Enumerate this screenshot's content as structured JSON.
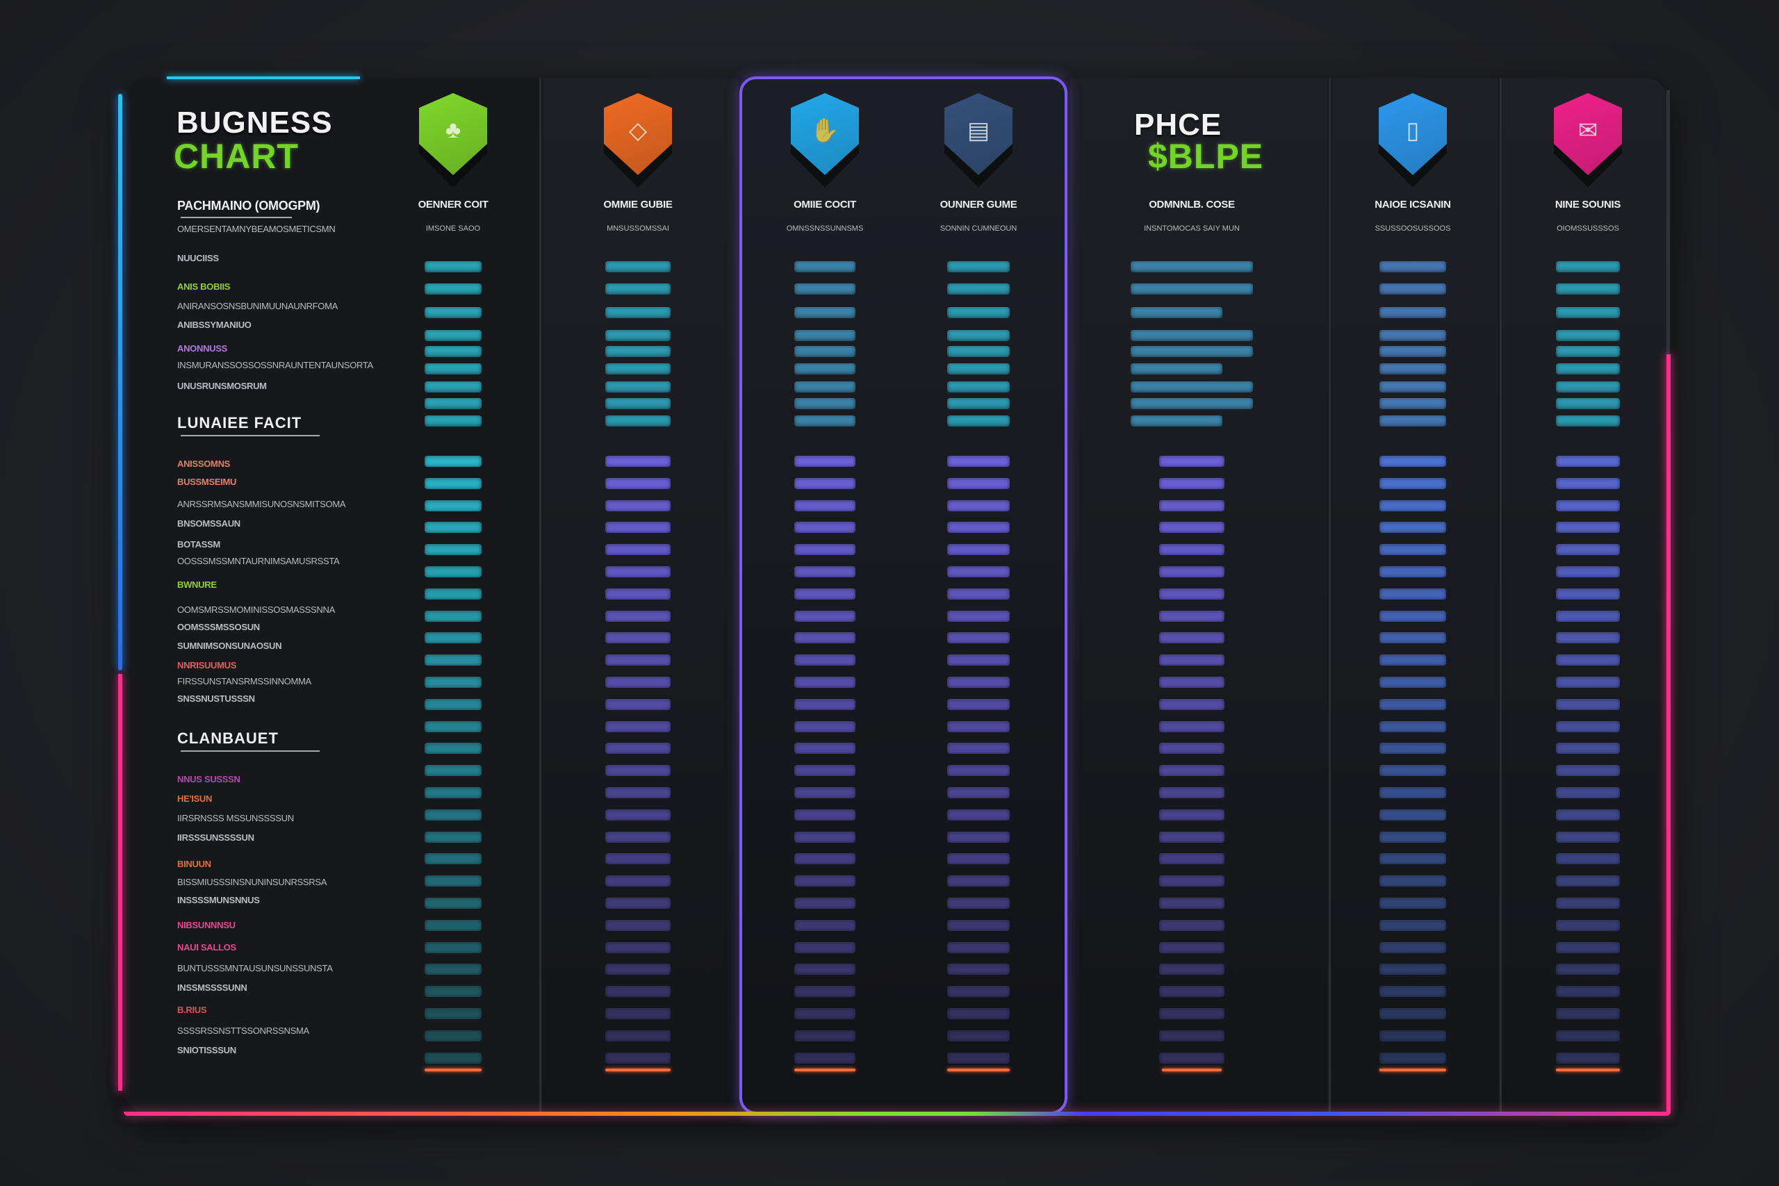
{
  "header": {
    "title_line1": "BUGNESS",
    "title_line2": "CHART",
    "price_line1": "PHCE",
    "price_line2": "$BLPE"
  },
  "colors": {
    "accent_cyan": "#2ac6f2",
    "accent_pink": "#ff2d8a",
    "accent_green": "#74d42a",
    "accent_purple": "#7a5cf0",
    "bar_cyan": "#2bb3c6",
    "bar_purple": "#6b60d6",
    "bar_blue": "#4c72d2",
    "bar_end": "#ff6a3a"
  },
  "sidebar": {
    "labels": [
      {
        "text": "PACHMAINO (OMOGPM)",
        "color": "#f0f0f0",
        "kind": "head-small"
      },
      {
        "text": "OMERSENTAMNYBEAMOSMETICSMN",
        "color": "#b9bcc2",
        "kind": "line"
      },
      {
        "text": "NUUCIISS",
        "color": "#b9bcc2",
        "kind": "item"
      },
      {
        "text": "ANIS BOBIIS",
        "color": "#8ed13a",
        "kind": "item"
      },
      {
        "text": "ANIRANSOSNSBUNIMUUNAUNRFOMA",
        "color": "#b9bcc2",
        "kind": "line"
      },
      {
        "text": "ANIBSSYMANIUO",
        "color": "#b9bcc2",
        "kind": "item"
      },
      {
        "text": "ANONNUSS",
        "color": "#b07ad8",
        "kind": "item"
      },
      {
        "text": "INSMURANSSOSSOSSNRAUNTENTAUNSORTA",
        "color": "#b9bcc2",
        "kind": "line"
      },
      {
        "text": "UNUSRUNSMOSRUM",
        "color": "#b9bcc2",
        "kind": "item"
      },
      {
        "text": "LUNAIEE FACIT",
        "color": "#f0f0f0",
        "kind": "head"
      },
      {
        "text": "ANISSOMNS",
        "color": "#e0806a",
        "kind": "item"
      },
      {
        "text": "BUSSMSEIMU",
        "color": "#e0806a",
        "kind": "item"
      },
      {
        "text": "ANRSSRMSANSMMISUNOSNSMITSOMA",
        "color": "#b9bcc2",
        "kind": "line"
      },
      {
        "text": "BNSOMSSAUN",
        "color": "#b9bcc2",
        "kind": "item"
      },
      {
        "text": "BOTASSM",
        "color": "#b9bcc2",
        "kind": "item"
      },
      {
        "text": "OOSSSMSSMNTAURNIMSAMUSRSSTA",
        "color": "#b9bcc2",
        "kind": "line"
      },
      {
        "text": "BWNURE",
        "color": "#8ed13a",
        "kind": "item"
      },
      {
        "text": "OOMSMRSSMOMINISSOSMASSSNNA",
        "color": "#b9bcc2",
        "kind": "line"
      },
      {
        "text": "OOMSSSMSSOSUN",
        "color": "#b9bcc2",
        "kind": "item"
      },
      {
        "text": "SUMNIMSONSUNAOSUN",
        "color": "#b9bcc2",
        "kind": "item"
      },
      {
        "text": "NNRISUUMUS",
        "color": "#e0605a",
        "kind": "item"
      },
      {
        "text": "FIRSSUNSTANSRMSSINNOMMA",
        "color": "#b9bcc2",
        "kind": "line"
      },
      {
        "text": "SNSSNUSTUSSSN",
        "color": "#b9bcc2",
        "kind": "item"
      },
      {
        "text": "CLANBAUET",
        "color": "#f0f0f0",
        "kind": "head"
      },
      {
        "text": "NNUS SUSSSN",
        "color": "#b04ab0",
        "kind": "item"
      },
      {
        "text": "HE'ISUN",
        "color": "#e0703a",
        "kind": "item"
      },
      {
        "text": "IIRSRNSSS MSSUNSSSSUN",
        "color": "#b9bcc2",
        "kind": "line"
      },
      {
        "text": "IIRSSSUNSSSSUN",
        "color": "#b9bcc2",
        "kind": "item"
      },
      {
        "text": "BINUUN",
        "color": "#e0703a",
        "kind": "item"
      },
      {
        "text": "BISSMIUSSSINSNUNINSUNRSSRSA",
        "color": "#b9bcc2",
        "kind": "line"
      },
      {
        "text": "INSSSSMUNSNNUS",
        "color": "#b9bcc2",
        "kind": "item"
      },
      {
        "text": "NIBSUNNNSU",
        "color": "#e04a90",
        "kind": "item"
      },
      {
        "text": "NAUI SALLOS",
        "color": "#e04a90",
        "kind": "item"
      },
      {
        "text": "BUNTUSSSMNTAUSUNSUNSSUNSTA",
        "color": "#b9bcc2",
        "kind": "line"
      },
      {
        "text": "INSSMSSSSUNN",
        "color": "#b9bcc2",
        "kind": "item"
      },
      {
        "text": "B.RIUS",
        "color": "#e0505a",
        "kind": "item"
      },
      {
        "text": "SSSSRSSNSTTSSONRSSNSMA",
        "color": "#b9bcc2",
        "kind": "line"
      },
      {
        "text": "SNIOTISSSUN",
        "color": "#b9bcc2",
        "kind": "item"
      }
    ]
  },
  "plans": [
    {
      "name": "OENNER COIT",
      "subtitle": "IMSONE SAOO",
      "icon": "shield-leaf-icon",
      "color": "#7fd82a",
      "bar_top": "#2bb3c6",
      "bar_bottom": "#2bb3c6"
    },
    {
      "name": "OMMIE GUBIE",
      "subtitle": "MNSUSSOMSSAI",
      "icon": "diamond-icon",
      "color": "#f06a22",
      "bar_top": "#2ea9c2",
      "bar_bottom": "#6b60d6"
    },
    {
      "name": "OMIIE COCIT",
      "subtitle": "OMNSSNSSUNNSMS",
      "icon": "hand-icon",
      "color": "#22a8ea",
      "bar_top": "#3f8fb8",
      "bar_bottom": "#6b60d6"
    },
    {
      "name": "OUNNER GUME",
      "subtitle": "SONNIN CUMNEOUN",
      "icon": "document-icon",
      "color": "#34507a",
      "bar_top": "#2ea9c2",
      "bar_bottom": "#6b60d6"
    },
    {
      "name": "ODMNNLB. COSE",
      "subtitle": "INSNTOMOCAS SAIY MUN",
      "icon": "none",
      "color": "#74d42a",
      "bar_top": "#3f8fb8",
      "bar_bottom": "#6b60d6"
    },
    {
      "name": "NAIOE ICSANIN",
      "subtitle": "SSUSSOOSUSSOOS",
      "icon": "cup-icon",
      "color": "#2c98ee",
      "bar_top": "#4a82c4",
      "bar_bottom": "#4c72d2"
    },
    {
      "name": "NINE SOUNIS",
      "subtitle": "OIOMSSUSSSOS",
      "icon": "megaphone-icon",
      "color": "#f0208a",
      "bar_top": "#2ea9c2",
      "bar_bottom": "#5a68d2"
    }
  ]
}
